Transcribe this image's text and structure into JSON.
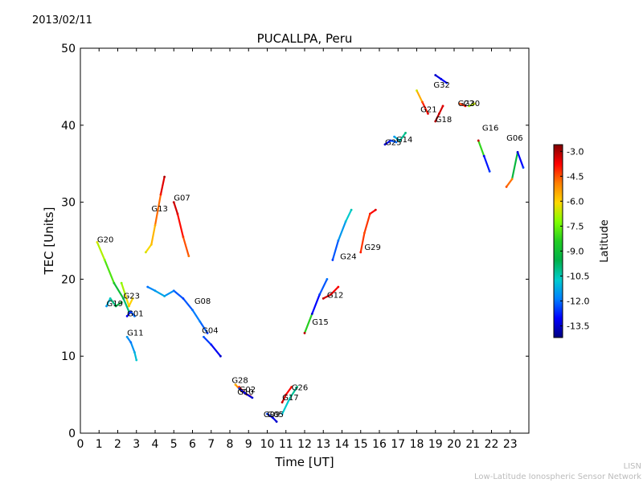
{
  "date_label": "2013/02/11",
  "footer": {
    "line1": "LISN",
    "line2": "Low-Latitude Ionospheric Sensor Network"
  },
  "colors": {
    "colormap": [
      "#00007f",
      "#0000ff",
      "#007fff",
      "#00cccc",
      "#00b04a",
      "#22cc22",
      "#7fff00",
      "#ffd700",
      "#ff7f00",
      "#ff0000",
      "#7f0000"
    ]
  },
  "chart_data": {
    "type": "scatter",
    "title": "PUCALLPA, Peru",
    "xlabel": "Time [UT]",
    "ylabel": "TEC [Units]",
    "xlim": [
      0,
      24
    ],
    "ylim": [
      0,
      50
    ],
    "xticks": [
      "0",
      "1",
      "2",
      "3",
      "4",
      "5",
      "6",
      "7",
      "8",
      "9",
      "10",
      "11",
      "12",
      "13",
      "14",
      "15",
      "16",
      "17",
      "18",
      "19",
      "20",
      "21",
      "22",
      "23"
    ],
    "yticks": [
      "0",
      "10",
      "20",
      "30",
      "40",
      "50"
    ],
    "grid": false,
    "colorbar": {
      "label": "Latitude",
      "range": [
        -14.2,
        -2.6
      ],
      "ticks": [
        "-3.0",
        "-4.5",
        "-6.0",
        "-7.5",
        "-9.0",
        "-10.5",
        "-12.0",
        "-13.5"
      ],
      "tick_values": [
        -3.0,
        -4.5,
        -6.0,
        -7.5,
        -9.0,
        -10.5,
        -12.0,
        -13.5
      ]
    },
    "series": [
      {
        "name": "G20",
        "points": [
          [
            0.9,
            24.8,
            -6.4
          ],
          [
            1.3,
            22.5,
            -7.2
          ],
          [
            1.8,
            19.5,
            -8.5
          ],
          [
            2.3,
            17.5,
            -9.5
          ],
          [
            2.6,
            15.8,
            -10.5
          ]
        ]
      },
      {
        "name": "G19",
        "points": [
          [
            1.4,
            16.5,
            -11.5
          ],
          [
            1.6,
            17.5,
            -10.5
          ],
          [
            1.9,
            16.5,
            -9.5
          ],
          [
            2.2,
            17.0,
            -9.2
          ]
        ]
      },
      {
        "name": "G23",
        "points": [
          [
            2.2,
            19.5,
            -7.2
          ],
          [
            2.4,
            18.0,
            -6.6
          ],
          [
            2.6,
            16.5,
            -5.8
          ],
          [
            2.8,
            17.5,
            -6.2
          ]
        ]
      },
      {
        "name": "G01",
        "points": [
          [
            2.5,
            15.2,
            -13.2
          ],
          [
            2.7,
            15.8,
            -12.5
          ],
          [
            2.9,
            15.2,
            -12.0
          ]
        ]
      },
      {
        "name": "G11",
        "points": [
          [
            2.5,
            12.5,
            -11.5
          ],
          [
            2.7,
            11.8,
            -12.0
          ],
          [
            2.9,
            10.5,
            -11.2
          ],
          [
            3.0,
            9.5,
            -10.8
          ]
        ]
      },
      {
        "name": "G13",
        "points": [
          [
            3.5,
            23.5,
            -6.5
          ],
          [
            3.8,
            24.5,
            -5.8
          ],
          [
            4.0,
            27.0,
            -5.5
          ],
          [
            4.3,
            31.0,
            -4.0
          ],
          [
            4.5,
            33.3,
            -3.0
          ]
        ]
      },
      {
        "name": "G07",
        "points": [
          [
            5.0,
            30.0,
            -3.2
          ],
          [
            5.2,
            28.5,
            -3.5
          ],
          [
            5.5,
            25.5,
            -4.2
          ],
          [
            5.8,
            23.0,
            -4.8
          ]
        ]
      },
      {
        "name": "G08",
        "points": [
          [
            3.6,
            19.0,
            -12.0
          ],
          [
            4.0,
            18.5,
            -11.5
          ],
          [
            4.5,
            17.8,
            -11.2
          ],
          [
            5.0,
            18.5,
            -12.0
          ],
          [
            5.5,
            17.5,
            -12.5
          ],
          [
            6.0,
            16.0,
            -12.0
          ],
          [
            6.4,
            14.5,
            -11.8
          ],
          [
            6.8,
            13.0,
            -12.5
          ]
        ]
      },
      {
        "name": "G04",
        "points": [
          [
            6.6,
            12.5,
            -12.2
          ],
          [
            7.0,
            11.5,
            -12.8
          ],
          [
            7.5,
            10.0,
            -13.5
          ]
        ]
      },
      {
        "name": "G28",
        "points": [
          [
            8.3,
            6.3,
            -5.5
          ],
          [
            8.6,
            5.5,
            -4.8
          ],
          [
            8.9,
            5.0,
            -5.2
          ]
        ]
      },
      {
        "name": "G02",
        "points": [
          [
            8.5,
            6.0,
            -4.2
          ],
          [
            8.8,
            5.2,
            -3.5
          ],
          [
            9.1,
            4.8,
            -3.2
          ]
        ]
      },
      {
        "name": "G10",
        "points": [
          [
            8.5,
            5.8,
            -12.5
          ],
          [
            8.8,
            5.2,
            -13.2
          ],
          [
            9.2,
            4.6,
            -13.5
          ]
        ]
      },
      {
        "name": "G05",
        "points": [
          [
            10.0,
            2.5,
            -12.5
          ],
          [
            10.3,
            2.0,
            -13.2
          ],
          [
            10.5,
            1.5,
            -13.5
          ]
        ]
      },
      {
        "name": "G26",
        "points": [
          [
            10.8,
            2.5,
            -11.0
          ],
          [
            11.2,
            4.5,
            -10.5
          ],
          [
            11.6,
            6.0,
            -10.0
          ]
        ]
      },
      {
        "name": "G17",
        "points": [
          [
            10.8,
            4.0,
            -3.2
          ],
          [
            11.0,
            5.0,
            -3.5
          ],
          [
            11.3,
            6.0,
            -4.0
          ]
        ]
      },
      {
        "name": "G15",
        "points": [
          [
            12.0,
            13.0,
            -3.2
          ],
          [
            12.4,
            15.5,
            -13.5
          ],
          [
            12.8,
            18.0,
            -12.5
          ],
          [
            13.2,
            20.0,
            -12.0
          ]
        ]
      },
      {
        "name": "G12",
        "points": [
          [
            13.0,
            17.5,
            -3.2
          ],
          [
            13.4,
            18.0,
            -3.5
          ],
          [
            13.8,
            19.0,
            -3.8
          ]
        ]
      },
      {
        "name": "G24",
        "points": [
          [
            13.5,
            22.5,
            -12.5
          ],
          [
            13.8,
            25.0,
            -12.0
          ],
          [
            14.2,
            27.5,
            -11.0
          ],
          [
            14.5,
            29.0,
            -10.5
          ]
        ]
      },
      {
        "name": "G29",
        "points": [
          [
            15.0,
            23.5,
            -4.0
          ],
          [
            15.2,
            26.0,
            -4.5
          ],
          [
            15.5,
            28.5,
            -4.0
          ],
          [
            15.8,
            29.0,
            -3.5
          ]
        ]
      },
      {
        "name": "G25",
        "points": [
          [
            16.3,
            37.5,
            -13.5
          ],
          [
            16.6,
            38.0,
            -12.5
          ],
          [
            16.9,
            37.8,
            -12.0
          ]
        ]
      },
      {
        "name": "G14",
        "points": [
          [
            16.8,
            38.5,
            -11.5
          ],
          [
            17.1,
            38.0,
            -10.5
          ],
          [
            17.4,
            39.0,
            -10.0
          ]
        ]
      },
      {
        "name": "G21",
        "points": [
          [
            18.0,
            44.5,
            -6.5
          ],
          [
            18.3,
            43.0,
            -4.5
          ],
          [
            18.6,
            41.5,
            -3.5
          ]
        ]
      },
      {
        "name": "G32",
        "points": [
          [
            19.0,
            46.5,
            -13.5
          ],
          [
            19.3,
            46.0,
            -13.2
          ],
          [
            19.6,
            45.5,
            -12.8
          ]
        ]
      },
      {
        "name": "G18",
        "points": [
          [
            19.0,
            40.5,
            -3.0
          ],
          [
            19.2,
            41.5,
            -3.2
          ],
          [
            19.4,
            42.5,
            -3.5
          ]
        ]
      },
      {
        "name": "G22",
        "points": [
          [
            20.3,
            42.8,
            -4.5
          ],
          [
            20.6,
            42.5,
            -3.8
          ]
        ]
      },
      {
        "name": "G30",
        "points": [
          [
            20.8,
            42.5,
            -7.0
          ],
          [
            21.1,
            42.8,
            -6.5
          ]
        ]
      },
      {
        "name": "G16",
        "points": [
          [
            21.3,
            38.0,
            -3.2
          ],
          [
            21.6,
            36.0,
            -13.2
          ],
          [
            21.9,
            34.0,
            -12.5
          ]
        ]
      },
      {
        "name": "G06",
        "points": [
          [
            22.8,
            32.0,
            -4.5
          ],
          [
            23.1,
            33.0,
            -5.0
          ],
          [
            23.4,
            36.5,
            -13.5
          ],
          [
            23.7,
            34.5,
            -12.5
          ]
        ]
      }
    ],
    "point_labels": [
      {
        "text": "G20",
        "x": 0.9,
        "y": 24.8
      },
      {
        "text": "G19",
        "x": 1.4,
        "y": 16.5
      },
      {
        "text": "G23",
        "x": 2.3,
        "y": 17.5
      },
      {
        "text": "G01",
        "x": 2.5,
        "y": 15.2
      },
      {
        "text": "G11",
        "x": 2.5,
        "y": 12.7
      },
      {
        "text": "G13",
        "x": 3.8,
        "y": 28.8
      },
      {
        "text": "G07",
        "x": 5.0,
        "y": 30.2
      },
      {
        "text": "G08",
        "x": 6.1,
        "y": 16.8
      },
      {
        "text": "G04",
        "x": 6.5,
        "y": 13.0
      },
      {
        "text": "G28",
        "x": 8.1,
        "y": 6.5
      },
      {
        "text": "G02",
        "x": 8.5,
        "y": 5.3
      },
      {
        "text": "G10",
        "x": 8.4,
        "y": 5.0
      },
      {
        "text": "G09",
        "x": 9.8,
        "y": 2.1
      },
      {
        "text": "G05",
        "x": 10.0,
        "y": 2.1
      },
      {
        "text": "G26",
        "x": 11.3,
        "y": 5.6
      },
      {
        "text": "G17",
        "x": 10.8,
        "y": 4.3
      },
      {
        "text": "G15",
        "x": 12.4,
        "y": 14.1
      },
      {
        "text": "G12",
        "x": 13.2,
        "y": 17.6
      },
      {
        "text": "G24",
        "x": 13.9,
        "y": 22.6
      },
      {
        "text": "G29",
        "x": 15.2,
        "y": 23.8
      },
      {
        "text": "G25",
        "x": 16.3,
        "y": 37.4
      },
      {
        "text": "G14",
        "x": 16.9,
        "y": 37.8
      },
      {
        "text": "G21",
        "x": 18.2,
        "y": 41.7
      },
      {
        "text": "G32",
        "x": 18.9,
        "y": 44.9
      },
      {
        "text": "G18",
        "x": 19.0,
        "y": 40.4
      },
      {
        "text": "G22",
        "x": 20.2,
        "y": 42.5
      },
      {
        "text": "G30",
        "x": 20.5,
        "y": 42.5
      },
      {
        "text": "G16",
        "x": 21.5,
        "y": 39.3
      },
      {
        "text": "G06",
        "x": 22.8,
        "y": 38.0
      }
    ]
  }
}
